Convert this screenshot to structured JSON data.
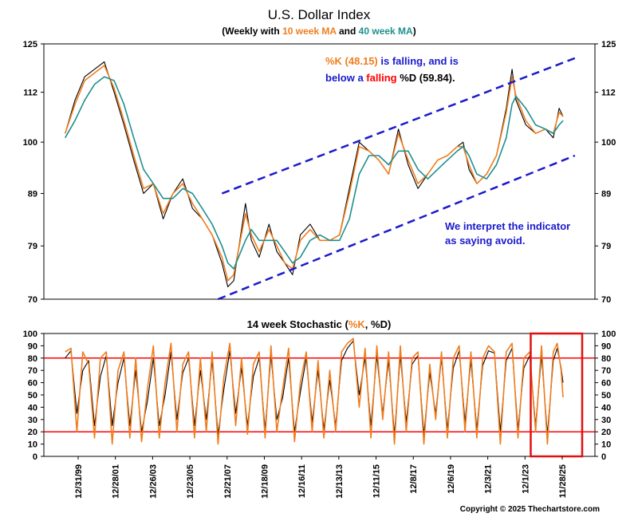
{
  "header": {
    "title": "U.S. Dollar Index",
    "subtitle_pre": "(Weekly with ",
    "subtitle_ma10": "10 week MA",
    "subtitle_mid": " and ",
    "subtitle_ma40": "40 week MA",
    "subtitle_post": ")"
  },
  "annotations": {
    "k_label": "%K (48.15)",
    "is_falling_and_is": " is falling, and is",
    "below_a": "below a ",
    "falling_word": "falling",
    "d_label": " %D (59.84).",
    "interpret_line1": "We interpret the indicator",
    "interpret_line2": "as saying avoid."
  },
  "stoch_title": {
    "pre": "14 week Stochastic (",
    "k": "%K",
    "sep": ", ",
    "d": "%D",
    "post": ")"
  },
  "copyright": "Copyright © 2025 Thechartstore.com",
  "colors": {
    "price": "#000000",
    "ma10": "#f07d1e",
    "ma40": "#1f8f8f",
    "channel": "#1a1acc",
    "stoch_k": "#f07d1e",
    "stoch_d": "#000000",
    "ref_lines": "#ff0000",
    "highlight_box": "#e01010"
  },
  "chart_data": [
    {
      "type": "line",
      "title": "U.S. Dollar Index",
      "y_scale": "log",
      "ylim": [
        70,
        125
      ],
      "y_ticks": [
        70,
        79,
        89,
        100,
        112,
        125
      ],
      "x_tick_labels": [
        "12/31/99",
        "12/28/01",
        "12/26/03",
        "12/23/05",
        "12/21/07",
        "12/18/09",
        "12/16/11",
        "12/13/13",
        "12/11/15",
        "12/8/17",
        "12/6/19",
        "12/3/21",
        "12/1/23",
        "11/28/25"
      ],
      "x_range": [
        1999.2,
        2026.7
      ],
      "series": [
        {
          "name": "Price",
          "x": [
            2000.0,
            2000.5,
            2001.0,
            2001.5,
            2002.0,
            2002.5,
            2003.0,
            2003.5,
            2004.0,
            2004.5,
            2005.0,
            2005.5,
            2006.0,
            2006.5,
            2007.0,
            2007.5,
            2008.0,
            2008.3,
            2008.6,
            2009.2,
            2009.5,
            2009.9,
            2010.4,
            2010.8,
            2011.2,
            2011.6,
            2012.0,
            2012.5,
            2013.0,
            2013.5,
            2014.0,
            2014.5,
            2015.0,
            2015.5,
            2016.0,
            2016.5,
            2017.0,
            2017.5,
            2018.0,
            2018.5,
            2019.0,
            2019.5,
            2020.0,
            2020.3,
            2020.6,
            2021.0,
            2021.5,
            2022.0,
            2022.5,
            2022.8,
            2023.0,
            2023.5,
            2024.0,
            2024.5,
            2024.9,
            2025.2,
            2025.4
          ],
          "values": [
            102,
            110,
            116,
            118,
            120,
            112,
            104,
            96,
            89,
            91,
            84,
            89,
            92,
            86,
            84,
            81,
            76,
            72,
            73,
            87,
            80,
            77,
            83,
            78,
            76,
            74,
            81,
            83,
            80,
            80,
            81,
            90,
            100,
            98,
            96,
            93,
            103,
            95,
            90,
            93,
            96,
            97,
            99,
            100,
            94,
            91,
            93,
            97,
            108,
            118,
            110,
            104,
            102,
            103,
            101,
            108,
            106
          ]
        },
        {
          "name": "10 week MA",
          "x": [
            2000.0,
            2000.5,
            2001.0,
            2001.5,
            2002.0,
            2002.5,
            2003.0,
            2003.5,
            2004.0,
            2004.5,
            2005.0,
            2005.5,
            2006.0,
            2006.5,
            2007.0,
            2007.5,
            2008.0,
            2008.3,
            2008.6,
            2009.2,
            2009.5,
            2009.9,
            2010.4,
            2010.8,
            2011.2,
            2011.6,
            2012.0,
            2012.5,
            2013.0,
            2013.5,
            2014.0,
            2014.5,
            2015.0,
            2015.5,
            2016.0,
            2016.5,
            2017.0,
            2017.5,
            2018.0,
            2018.5,
            2019.0,
            2019.5,
            2020.0,
            2020.3,
            2020.6,
            2021.0,
            2021.5,
            2022.0,
            2022.5,
            2022.8,
            2023.0,
            2023.5,
            2024.0,
            2024.5,
            2024.9,
            2025.2,
            2025.4
          ],
          "values": [
            102,
            109,
            115,
            117,
            119,
            113,
            105,
            97,
            90,
            91,
            85,
            89,
            91,
            87,
            84,
            81,
            77,
            73,
            74,
            85,
            81,
            78,
            82,
            79,
            76,
            75,
            80,
            82,
            80,
            80,
            81,
            89,
            99,
            98,
            96,
            93,
            102,
            96,
            91,
            93,
            96,
            97,
            99,
            99,
            95,
            91,
            93,
            97,
            107,
            116,
            111,
            105,
            102,
            103,
            102,
            107,
            106
          ]
        },
        {
          "name": "40 week MA",
          "x": [
            2000.0,
            2000.5,
            2001.0,
            2001.5,
            2002.0,
            2002.5,
            2003.0,
            2003.5,
            2004.0,
            2004.5,
            2005.0,
            2005.5,
            2006.0,
            2006.5,
            2007.0,
            2007.5,
            2008.0,
            2008.3,
            2008.6,
            2009.2,
            2009.5,
            2009.9,
            2010.4,
            2010.8,
            2011.2,
            2011.6,
            2012.0,
            2012.5,
            2013.0,
            2013.5,
            2014.0,
            2014.5,
            2015.0,
            2015.5,
            2016.0,
            2016.5,
            2017.0,
            2017.5,
            2018.0,
            2018.5,
            2019.0,
            2019.5,
            2020.0,
            2020.3,
            2020.6,
            2021.0,
            2021.5,
            2022.0,
            2022.5,
            2022.8,
            2023.0,
            2023.5,
            2024.0,
            2024.5,
            2024.9,
            2025.2,
            2025.4
          ],
          "values": [
            101,
            105,
            110,
            114,
            116,
            115,
            109,
            101,
            94,
            91,
            88,
            88,
            90,
            89,
            86,
            83,
            79,
            76,
            75,
            80,
            82,
            80,
            80,
            80,
            78,
            76,
            77,
            80,
            81,
            80,
            80,
            84,
            93,
            97,
            97,
            95,
            98,
            98,
            94,
            92,
            94,
            96,
            98,
            99,
            97,
            93,
            92,
            95,
            101,
            109,
            111,
            108,
            104,
            103,
            102,
            104,
            105
          ]
        },
        {
          "name": "Upper channel",
          "x": [
            2008.0,
            2026.0
          ],
          "values": [
            89,
            121
          ]
        },
        {
          "name": "Lower channel",
          "x": [
            2007.8,
            2026.0
          ],
          "values": [
            70,
            97
          ]
        }
      ]
    },
    {
      "type": "line",
      "title": "14 week Stochastic (%K, %D)",
      "ylim": [
        0,
        100
      ],
      "y_ticks": [
        0,
        10,
        20,
        30,
        40,
        50,
        60,
        70,
        80,
        90,
        100
      ],
      "reference_lines": [
        20,
        80
      ],
      "x_tick_labels": [
        "12/31/99",
        "12/28/01",
        "12/26/03",
        "12/23/05",
        "12/21/07",
        "12/18/09",
        "12/16/11",
        "12/13/13",
        "12/11/15",
        "12/8/17",
        "12/6/19",
        "12/3/21",
        "12/1/23",
        "11/28/25"
      ],
      "x_range": [
        1999.2,
        2026.7
      ],
      "highlight_x_range": [
        2023.75,
        2026.8
      ],
      "series": [
        {
          "name": "%K",
          "x": [
            2000.0,
            2000.3,
            2000.6,
            2000.9,
            2001.2,
            2001.5,
            2001.8,
            2002.1,
            2002.4,
            2002.7,
            2003.0,
            2003.3,
            2003.6,
            2003.9,
            2004.2,
            2004.5,
            2004.8,
            2005.1,
            2005.4,
            2005.7,
            2006.0,
            2006.3,
            2006.6,
            2006.9,
            2007.2,
            2007.5,
            2007.8,
            2008.1,
            2008.4,
            2008.7,
            2009.0,
            2009.3,
            2009.6,
            2009.9,
            2010.2,
            2010.5,
            2010.8,
            2011.1,
            2011.4,
            2011.7,
            2012.0,
            2012.3,
            2012.6,
            2012.9,
            2013.2,
            2013.5,
            2013.8,
            2014.1,
            2014.4,
            2014.7,
            2015.0,
            2015.3,
            2015.6,
            2015.9,
            2016.2,
            2016.5,
            2016.8,
            2017.1,
            2017.4,
            2017.7,
            2018.0,
            2018.3,
            2018.6,
            2018.9,
            2019.2,
            2019.5,
            2019.8,
            2020.1,
            2020.4,
            2020.7,
            2021.0,
            2021.3,
            2021.6,
            2021.9,
            2022.2,
            2022.5,
            2022.8,
            2023.1,
            2023.4,
            2023.7,
            2024.0,
            2024.3,
            2024.6,
            2024.9,
            2025.1,
            2025.3,
            2025.4
          ],
          "values": [
            85,
            88,
            20,
            85,
            75,
            15,
            80,
            85,
            10,
            70,
            85,
            15,
            80,
            12,
            55,
            90,
            15,
            60,
            92,
            20,
            75,
            85,
            15,
            80,
            20,
            85,
            10,
            65,
            92,
            25,
            80,
            18,
            75,
            85,
            15,
            90,
            20,
            55,
            88,
            12,
            60,
            85,
            20,
            78,
            15,
            70,
            20,
            85,
            92,
            96,
            40,
            88,
            15,
            90,
            30,
            85,
            10,
            90,
            20,
            80,
            85,
            10,
            75,
            30,
            85,
            15,
            80,
            90,
            20,
            85,
            15,
            80,
            90,
            85,
            10,
            85,
            92,
            15,
            80,
            85,
            20,
            90,
            10,
            85,
            92,
            70,
            48
          ]
        },
        {
          "name": "%D",
          "x": [
            2000.0,
            2000.3,
            2000.6,
            2000.9,
            2001.2,
            2001.5,
            2001.8,
            2002.1,
            2002.4,
            2002.7,
            2003.0,
            2003.3,
            2003.6,
            2003.9,
            2004.2,
            2004.5,
            2004.8,
            2005.1,
            2005.4,
            2005.7,
            2006.0,
            2006.3,
            2006.6,
            2006.9,
            2007.2,
            2007.5,
            2007.8,
            2008.1,
            2008.4,
            2008.7,
            2009.0,
            2009.3,
            2009.6,
            2009.9,
            2010.2,
            2010.5,
            2010.8,
            2011.1,
            2011.4,
            2011.7,
            2012.0,
            2012.3,
            2012.6,
            2012.9,
            2013.2,
            2013.5,
            2013.8,
            2014.1,
            2014.4,
            2014.7,
            2015.0,
            2015.3,
            2015.6,
            2015.9,
            2016.2,
            2016.5,
            2016.8,
            2017.1,
            2017.4,
            2017.7,
            2018.0,
            2018.3,
            2018.6,
            2018.9,
            2019.2,
            2019.5,
            2019.8,
            2020.1,
            2020.4,
            2020.7,
            2021.0,
            2021.3,
            2021.6,
            2021.9,
            2022.2,
            2022.5,
            2022.8,
            2023.1,
            2023.4,
            2023.7,
            2024.0,
            2024.3,
            2024.6,
            2024.9,
            2025.1,
            2025.3,
            2025.4
          ],
          "values": [
            80,
            86,
            35,
            70,
            78,
            25,
            65,
            82,
            25,
            60,
            80,
            25,
            70,
            20,
            45,
            80,
            25,
            50,
            85,
            30,
            68,
            80,
            25,
            70,
            30,
            78,
            18,
            55,
            86,
            35,
            72,
            25,
            65,
            80,
            22,
            82,
            30,
            48,
            80,
            20,
            52,
            80,
            28,
            70,
            22,
            62,
            25,
            78,
            88,
            94,
            50,
            80,
            25,
            82,
            35,
            78,
            18,
            82,
            28,
            75,
            82,
            18,
            68,
            35,
            80,
            22,
            72,
            86,
            28,
            78,
            22,
            74,
            86,
            84,
            20,
            78,
            88,
            22,
            72,
            82,
            25,
            82,
            18,
            78,
            88,
            72,
            60
          ]
        }
      ]
    }
  ]
}
